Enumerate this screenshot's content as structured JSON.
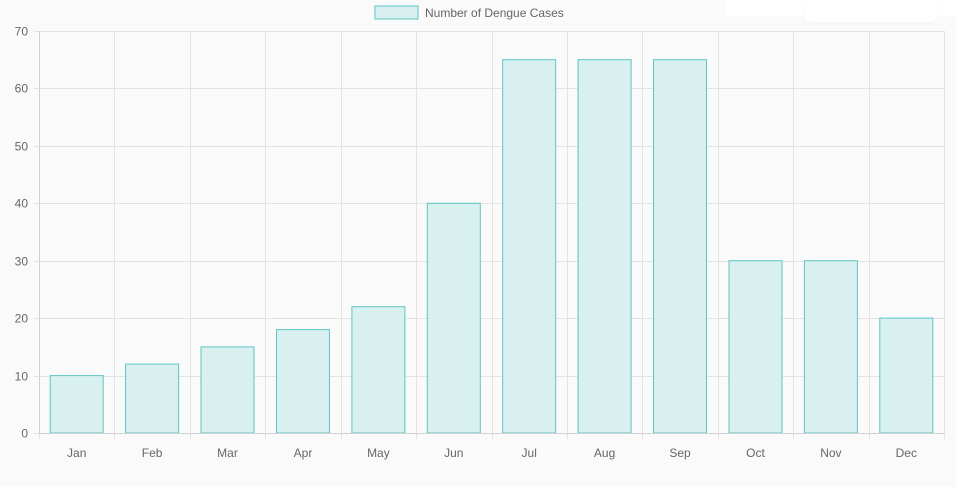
{
  "chart_data": {
    "type": "bar",
    "categories": [
      "Jan",
      "Feb",
      "Mar",
      "Apr",
      "May",
      "Jun",
      "Jul",
      "Aug",
      "Sep",
      "Oct",
      "Nov",
      "Dec"
    ],
    "series": [
      {
        "name": "Number of Dengue Cases",
        "values": [
          10,
          12,
          15,
          18,
          22,
          40,
          65,
          65,
          65,
          30,
          30,
          20
        ]
      }
    ],
    "ylim": [
      0,
      70
    ],
    "yticks": [
      0,
      10,
      20,
      30,
      40,
      50,
      60,
      70
    ],
    "grid": true,
    "legend_position": "top",
    "colors": {
      "bar_fill": "#d9f0f1",
      "bar_border": "#5cc5c5",
      "grid": "#e3e3e3",
      "tick_text": "#666666"
    }
  }
}
